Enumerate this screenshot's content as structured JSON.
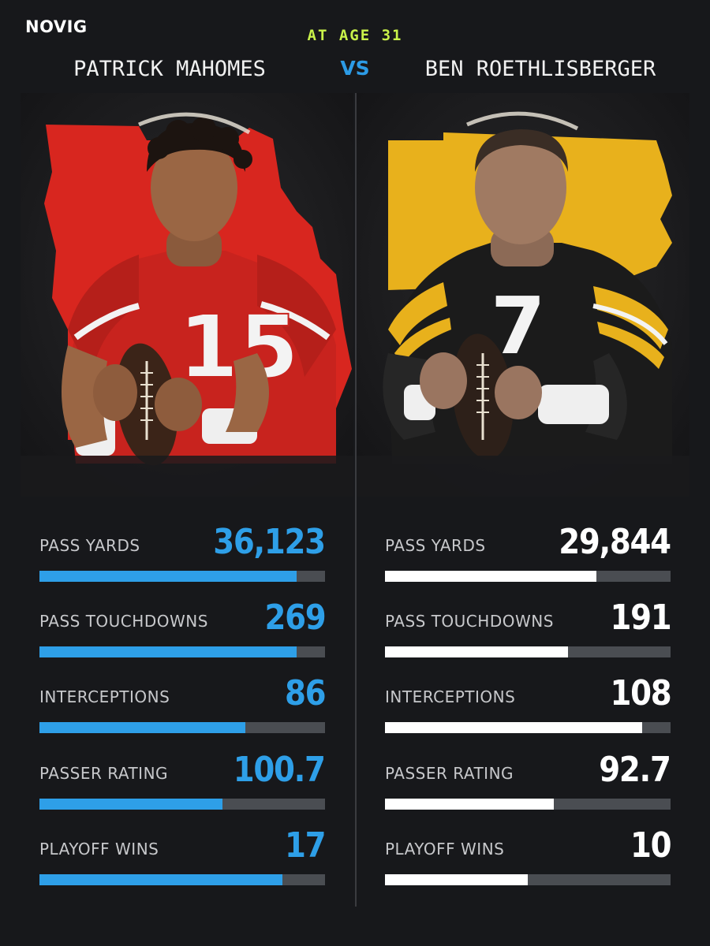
{
  "brand": "NOVIG",
  "subtitle": "AT AGE 31",
  "vs": "VS",
  "players": [
    {
      "name": "PATRICK MAHOMES",
      "accent": "#2e9fe8",
      "state_color": "#d8261f",
      "jersey_color": "#c8231e",
      "jersey_number": "15",
      "stats": [
        {
          "label": "PASS YARDS",
          "value": "36,123",
          "fill": 0.9
        },
        {
          "label": "PASS TOUCHDOWNS",
          "value": "269",
          "fill": 0.9
        },
        {
          "label": "INTERCEPTIONS",
          "value": "86",
          "fill": 0.72
        },
        {
          "label": "PASSER RATING",
          "value": "100.7",
          "fill": 0.64
        },
        {
          "label": "PLAYOFF WINS",
          "value": "17",
          "fill": 0.85
        }
      ]
    },
    {
      "name": "BEN ROETHLISBERGER",
      "accent": "#ffffff",
      "state_color": "#e8b11c",
      "jersey_color": "#1b1b1b",
      "jersey_number": "7",
      "stats": [
        {
          "label": "PASS YARDS",
          "value": "29,844",
          "fill": 0.74
        },
        {
          "label": "PASS TOUCHDOWNS",
          "value": "191",
          "fill": 0.64
        },
        {
          "label": "INTERCEPTIONS",
          "value": "108",
          "fill": 0.9
        },
        {
          "label": "PASSER RATING",
          "value": "92.7",
          "fill": 0.59
        },
        {
          "label": "PLAYOFF WINS",
          "value": "10",
          "fill": 0.5
        }
      ]
    }
  ]
}
